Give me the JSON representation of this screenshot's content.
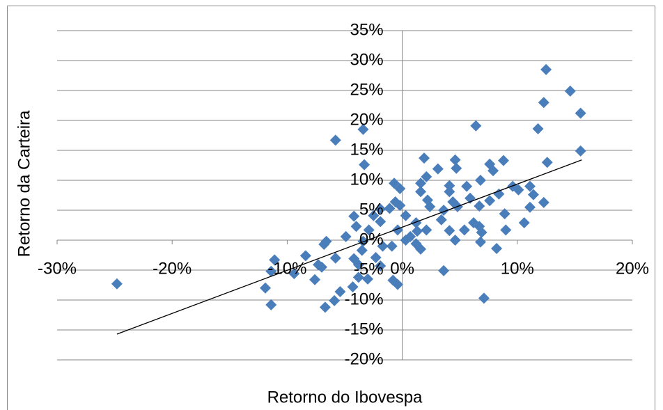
{
  "chart_data": {
    "type": "scatter",
    "x_label": "Retorno do Ibovespa",
    "y_label": "Retorno da Carteira",
    "color": "#4a7ebb",
    "grid": true,
    "xlim": [
      -30,
      20
    ],
    "ylim": [
      -20,
      35
    ],
    "xticks": [
      {
        "value": -30,
        "label": "-30%"
      },
      {
        "value": -20,
        "label": "-20%"
      },
      {
        "value": -10,
        "label": "-10%"
      },
      {
        "value": 0,
        "label": "0%"
      },
      {
        "value": 10,
        "label": "10%"
      },
      {
        "value": 20,
        "label": "20%"
      }
    ],
    "yticks": [
      {
        "value": -20,
        "label": "-20%"
      },
      {
        "value": -15,
        "label": "-15%"
      },
      {
        "value": -10,
        "label": "-10%"
      },
      {
        "value": -5,
        "label": "-5%"
      },
      {
        "value": 0,
        "label": "0%"
      },
      {
        "value": 5,
        "label": "5%"
      },
      {
        "value": 10,
        "label": "10%"
      },
      {
        "value": 15,
        "label": "15%"
      },
      {
        "value": 20,
        "label": "20%"
      },
      {
        "value": 25,
        "label": "25%"
      },
      {
        "value": 30,
        "label": "30%"
      },
      {
        "value": 35,
        "label": "35%"
      }
    ],
    "x": [
      -24.8,
      12.5,
      14.6,
      15.5,
      12.3,
      11.8,
      6.4,
      15.5,
      12.6,
      -3.4,
      -5.8,
      -3.3,
      1.9,
      4.6,
      3.1,
      4.7,
      8.8,
      7.6,
      7.9,
      -0.7,
      -0.2,
      2.1,
      1.6,
      6.8,
      4.1,
      5.6,
      9.6,
      10.1,
      11.1,
      1.6,
      -0.6,
      -0.2,
      4.1,
      4.4,
      5.9,
      8.4,
      11.4,
      -1.1,
      -1.9,
      -1.9,
      -2.5,
      0.3,
      2.2,
      2.4,
      4.8,
      3.6,
      3.4,
      7.6,
      6.7,
      11.1,
      12.3,
      8.9,
      -4.2,
      -4.0,
      -2.9,
      -0.4,
      1.2,
      1.3,
      2.1,
      4.1,
      5.4,
      6.2,
      6.7,
      6.9,
      9.0,
      10.6,
      4.6,
      6.8,
      8.2,
      -4.9,
      -3.4,
      -1.7,
      -0.9,
      0.3,
      0.7,
      1.2,
      1.6,
      -6.6,
      -6.8,
      -8.4,
      -11.1,
      -9.4,
      -7.3,
      -7.0,
      -7.6,
      -11.4,
      -5.8,
      -4.2,
      -3.5,
      -3.8,
      -2.3,
      -1.9,
      -0.8,
      -0.4,
      3.6,
      7.1,
      -11.9,
      -11.4,
      -6.7,
      -5.9,
      -5.4,
      -4.3,
      -3.8,
      -3.0
    ],
    "y": [
      -7.3,
      28.5,
      24.9,
      21.2,
      23.0,
      18.6,
      19.1,
      14.9,
      13.0,
      18.5,
      16.7,
      12.6,
      13.7,
      13.4,
      11.9,
      12.0,
      13.3,
      12.7,
      11.6,
      9.5,
      8.6,
      10.6,
      9.5,
      10.0,
      9.1,
      9.0,
      9.0,
      8.4,
      9.0,
      8.1,
      6.4,
      5.8,
      8.1,
      6.4,
      7.0,
      7.7,
      7.6,
      5.3,
      5.2,
      3.1,
      4.1,
      4.1,
      6.7,
      5.6,
      5.6,
      5.0,
      3.4,
      6.6,
      5.7,
      5.5,
      6.3,
      4.4,
      4.0,
      2.3,
      1.7,
      1.7,
      2.9,
      1.5,
      1.7,
      1.6,
      1.7,
      2.9,
      2.3,
      1.3,
      1.7,
      2.9,
      0,
      -0.3,
      -1.4,
      0.6,
      -0.2,
      -1.0,
      -1.0,
      0,
      0.6,
      -0.6,
      -1.5,
      -0.2,
      -0.7,
      -2.6,
      -3.3,
      -5.6,
      -4.1,
      -4.5,
      -6.6,
      -5.2,
      -3.0,
      -3.1,
      -1.7,
      -4.1,
      -2.9,
      -4.3,
      -6.7,
      -7.4,
      -5.1,
      -9.7,
      -8.0,
      -10.8,
      -11.2,
      -10.1,
      -8.6,
      -7.8,
      -6.2,
      -6.5
    ],
    "trendline": {
      "x": [
        -24.8,
        15.6
      ],
      "y": [
        -15.7,
        13.4
      ],
      "color": "#000000"
    }
  }
}
